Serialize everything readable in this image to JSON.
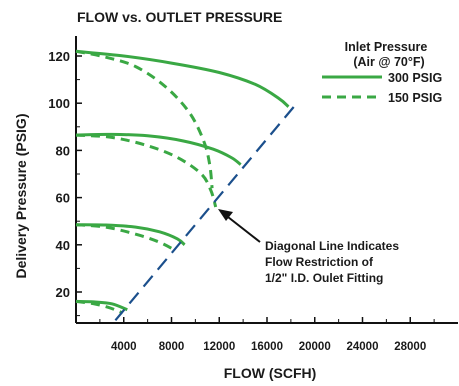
{
  "chart_data": {
    "type": "line",
    "title": "FLOW vs. OUTLET PRESSURE",
    "xlabel": "FLOW (SCFH)",
    "ylabel": "Delivery Pressure (PSIG)",
    "xlim": [
      0,
      32000
    ],
    "ylim": [
      8,
      125
    ],
    "x_ticks": [
      4000,
      8000,
      12000,
      16000,
      20000,
      24000,
      28000
    ],
    "y_ticks": [
      20,
      40,
      60,
      80,
      100,
      120
    ],
    "grid": false,
    "legend": {
      "title_lines": [
        "Inlet Pressure",
        "(Air @ 70°F)"
      ],
      "placement": "top-right",
      "entries": [
        {
          "label": "300 PSIG",
          "style": "solid"
        },
        {
          "label": "150 PSIG",
          "style": "dashed"
        }
      ]
    },
    "series": [
      {
        "name": "300 PSIG",
        "style": "solid",
        "color": "#3aa844",
        "curves": [
          {
            "x": [
              0,
              4000,
              8000,
              12000,
              15000,
              17000,
              17800
            ],
            "y": [
              122,
              120,
              117,
              113,
              108,
              102,
              98.5
            ]
          },
          {
            "x": [
              0,
              3000,
              6000,
              9000,
              11500,
              13000,
              13800
            ],
            "y": [
              86.5,
              86.8,
              86.2,
              84,
              80.5,
              77,
              74
            ]
          },
          {
            "x": [
              0,
              2500,
              5000,
              7000,
              8500,
              9100
            ],
            "y": [
              48.5,
              48.4,
              47.5,
              45.5,
              42.5,
              40
            ]
          },
          {
            "x": [
              0,
              1500,
              3000,
              4300
            ],
            "y": [
              16,
              15.8,
              15,
              12.5
            ]
          }
        ]
      },
      {
        "name": "150 PSIG",
        "style": "dashed",
        "color": "#3aa844",
        "curves": [
          {
            "x": [
              0,
              2500,
              5000,
              7500,
              9500,
              10700,
              11200,
              11400
            ],
            "y": [
              122,
              119.5,
              115.5,
              107,
              96,
              84,
              74,
              64
            ]
          },
          {
            "x": [
              0,
              3000,
              6000,
              8500,
              10500,
              11300,
              11700
            ],
            "y": [
              86.5,
              85.5,
              82,
              77,
              70,
              63,
              56
            ]
          },
          {
            "x": [
              0,
              2500,
              5000,
              6800,
              8000,
              8300
            ],
            "y": [
              48.5,
              47.5,
              44.5,
              41.5,
              38.5,
              37
            ]
          },
          {
            "x": [
              0,
              1500,
              2700,
              3600,
              3900
            ],
            "y": [
              16,
              15,
              13.5,
              11.8,
              11
            ]
          }
        ]
      }
    ],
    "flow_restriction_line": {
      "x": [
        3300,
        18500
      ],
      "y": [
        8,
        100
      ],
      "style": "dashed",
      "color": "#1b4f8c"
    },
    "annotation": {
      "lines": [
        "Diagonal Line Indicates",
        "Flow Restriction of",
        "1/2\" I.D. Oulet Fitting"
      ],
      "arrow_target": {
        "x": 11200,
        "y": 56
      }
    }
  }
}
